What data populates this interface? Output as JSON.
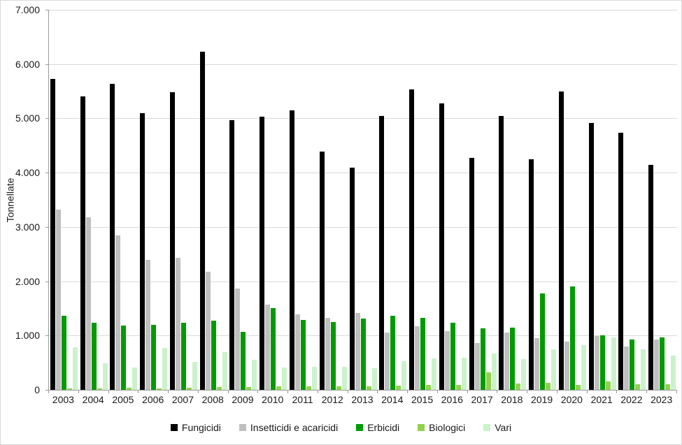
{
  "chart_data": {
    "type": "bar",
    "title": "",
    "xlabel": "",
    "ylabel": "Tonnellate",
    "ylim": [
      0,
      7000
    ],
    "ytick_step": 1000,
    "ytick_labels": [
      "0",
      "1.000",
      "2.000",
      "3.000",
      "4.000",
      "5.000",
      "6.000",
      "7.000"
    ],
    "grid": true,
    "grid_color": "#d9d9d9",
    "axis_color": "#9b9b9b",
    "legend_position": "bottom",
    "categories": [
      "2003",
      "2004",
      "2005",
      "2006",
      "2007",
      "2008",
      "2009",
      "2010",
      "2011",
      "2012",
      "2013",
      "2014",
      "2015",
      "2016",
      "2017",
      "2018",
      "2019",
      "2020",
      "2021",
      "2022",
      "2023"
    ],
    "series": [
      {
        "name": "Fungicidi",
        "color": "#000000",
        "values": [
          5720,
          5410,
          5640,
          5090,
          5480,
          6230,
          4970,
          5030,
          5150,
          4390,
          4090,
          5040,
          5530,
          5270,
          4270,
          5050,
          4250,
          5490,
          4920,
          4730,
          4150
        ]
      },
      {
        "name": "Insetticidi e acaricidi",
        "color": "#bfbfbf",
        "values": [
          3320,
          3180,
          2850,
          2390,
          2430,
          2180,
          1870,
          1570,
          1390,
          1330,
          1420,
          1050,
          1170,
          1080,
          860,
          1050,
          950,
          890,
          990,
          800,
          930
        ]
      },
      {
        "name": "Erbicidi",
        "color": "#009b00",
        "values": [
          1370,
          1230,
          1180,
          1200,
          1240,
          1280,
          1070,
          1510,
          1290,
          1250,
          1310,
          1360,
          1330,
          1230,
          1130,
          1140,
          1780,
          1900,
          1000,
          930,
          960
        ]
      },
      {
        "name": "Biologici",
        "color": "#92d050",
        "values": [
          20,
          30,
          40,
          30,
          40,
          50,
          50,
          70,
          60,
          60,
          60,
          80,
          90,
          90,
          320,
          120,
          130,
          90,
          150,
          100,
          100
        ]
      },
      {
        "name": "Vari",
        "color": "#ccf2cc",
        "values": [
          780,
          490,
          410,
          770,
          520,
          690,
          550,
          410,
          430,
          430,
          400,
          530,
          580,
          590,
          670,
          570,
          750,
          820,
          970,
          750,
          630
        ]
      }
    ]
  }
}
